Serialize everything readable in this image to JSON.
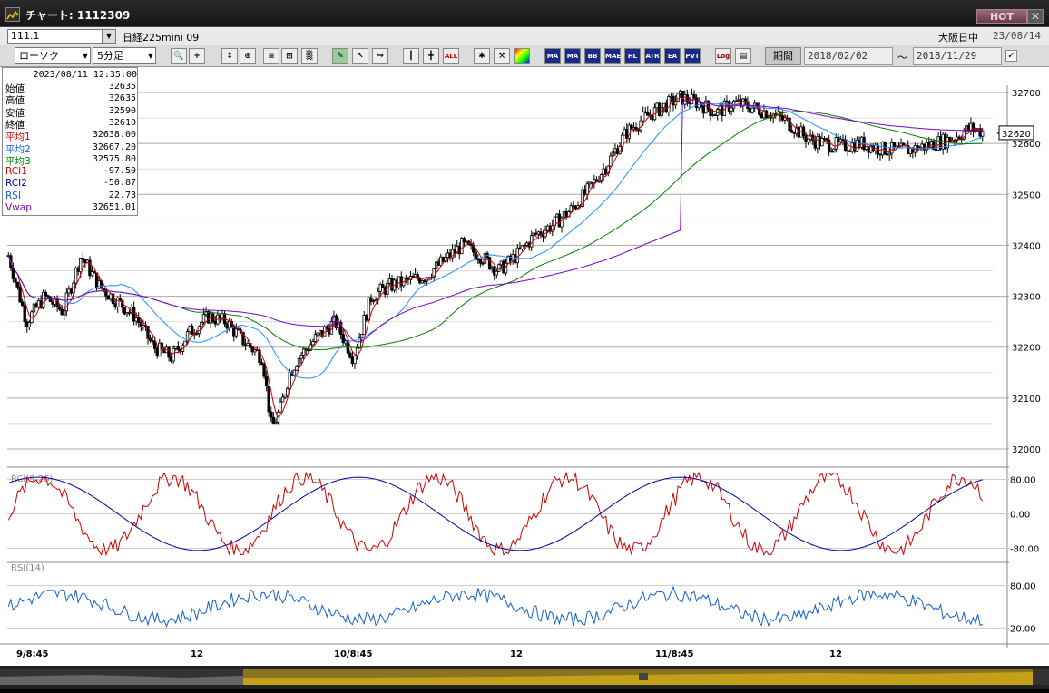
{
  "window": {
    "title": "チャート: 1112309",
    "hot_label": "HOT",
    "close_label": "✕"
  },
  "symbol": {
    "code": "111.1",
    "name": "日経225mini 09",
    "market": "大阪日中",
    "date": "23/08/14"
  },
  "toolbar": {
    "chart_type": "ローソク",
    "interval": "5分足",
    "buttons": [
      "search-icon",
      "crosshair-icon",
      "zoom-in-icon",
      "zoom-out-icon",
      "trend-icon",
      "text-icon",
      "pen-icon",
      "cursor-icon",
      "pointer-icon",
      "candle-icon",
      "split-icon",
      "all-icon",
      "settings-icon",
      "tools-icon",
      "palette-icon"
    ],
    "all_label": "ALL",
    "indicator_buttons": [
      "MA",
      "MA",
      "BB",
      "MAE",
      "HL",
      "ATR",
      "EA",
      "PVT"
    ],
    "log_label": "Log",
    "period_label": "期間",
    "date_from": "2018/02/02",
    "date_to": "2018/11/29",
    "tilde": "～"
  },
  "info_panel": {
    "datetime": "2023/08/11  12:35:00",
    "rows": [
      {
        "label": "始値",
        "value": "32635",
        "color": "#000000"
      },
      {
        "label": "高値",
        "value": "32635",
        "color": "#000000"
      },
      {
        "label": "安値",
        "value": "32590",
        "color": "#000000"
      },
      {
        "label": "終値",
        "value": "32610",
        "color": "#000000"
      },
      {
        "label": "平均1",
        "value": "32638.00",
        "color": "#d00000"
      },
      {
        "label": "平均2",
        "value": "32667.20",
        "color": "#1060d0"
      },
      {
        "label": "平均3",
        "value": "32575.80",
        "color": "#008000"
      },
      {
        "label": "RCI1",
        "value": "-97.50",
        "color": "#d00000"
      },
      {
        "label": "RCI2",
        "value": "-50.87",
        "color": "#0000a0"
      },
      {
        "label": "RSI",
        "value": "22.73",
        "color": "#1060d0"
      },
      {
        "label": "Vwap",
        "value": "32651.01",
        "color": "#8000c0"
      }
    ]
  },
  "chart_data": [
    {
      "type": "candlestick",
      "ylim": [
        32000,
        32700
      ],
      "y_ticks": [
        "32700",
        "32600",
        "32500",
        "32400",
        "32300",
        "32200",
        "32100",
        "32000"
      ],
      "x_ticks": [
        "9/8:45",
        "12",
        "10/8:45",
        "12",
        "11/8:45",
        "12"
      ],
      "current_price": "32620",
      "series": [
        {
          "name": "平均1",
          "color": "#d00000"
        },
        {
          "name": "平均2",
          "color": "#1e90ff"
        },
        {
          "name": "平均3",
          "color": "#008000"
        },
        {
          "name": "Vwap",
          "color": "#8000c0"
        }
      ]
    },
    {
      "type": "line",
      "title": "RCI(9,26)",
      "ylim": [
        -100,
        100
      ],
      "y_ticks": [
        "80.00",
        "0.00",
        "-80.00"
      ],
      "series": [
        {
          "name": "RCI1",
          "color": "#d00000"
        },
        {
          "name": "RCI2",
          "color": "#0000a0"
        }
      ]
    },
    {
      "type": "line",
      "title": "RSI(14)",
      "ylim": [
        0,
        100
      ],
      "y_ticks": [
        "80.00",
        "20.00"
      ],
      "series": [
        {
          "name": "RSI",
          "color": "#1060d0"
        }
      ]
    }
  ]
}
